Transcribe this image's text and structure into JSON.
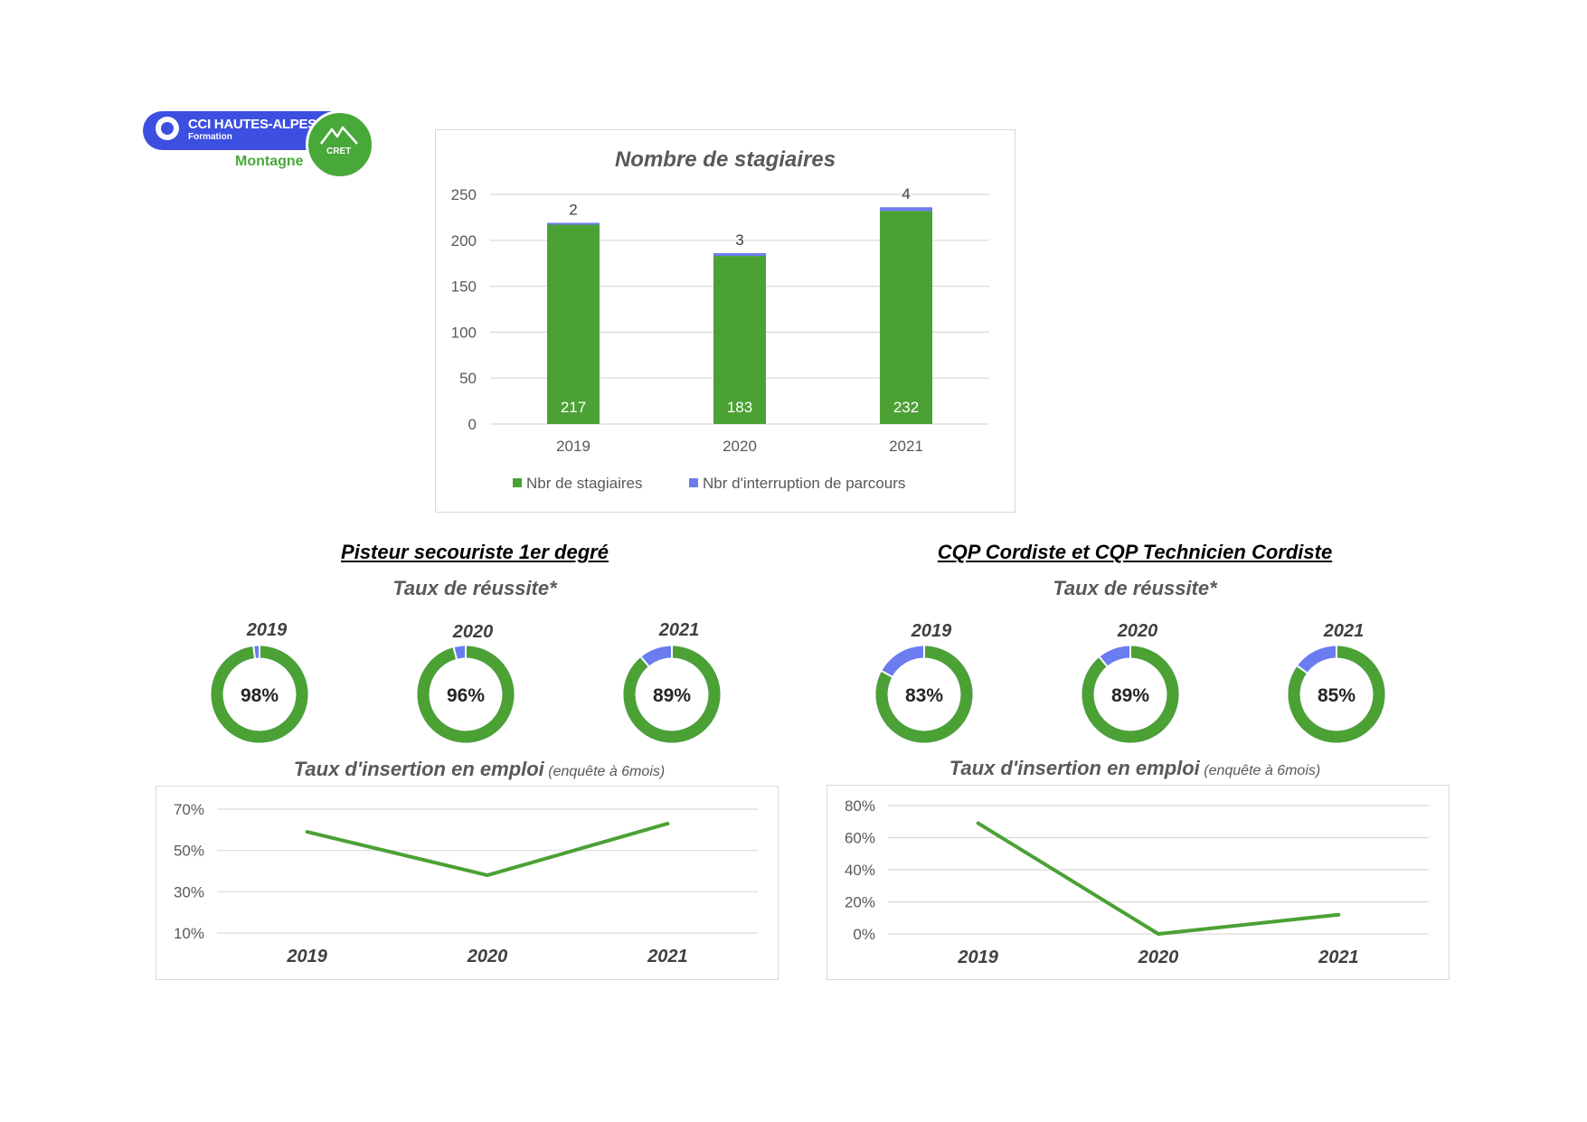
{
  "logo": {
    "line1": "CCI HAUTES-ALPES",
    "line2": "Formation",
    "line3": "Montagne",
    "badge": "CRET"
  },
  "colors": {
    "green": "#4ba134",
    "blue": "#6b7cf0",
    "grid": "#d9d9d9"
  },
  "sections": {
    "left_title": "Pisteur secouriste 1er degré",
    "right_title": "CQP Cordiste et CQP Technicien Cordiste",
    "success_label": "Taux de réussite*",
    "insertion_label": "Taux d'insertion en emploi",
    "insertion_note": "(enquête à 6mois)"
  },
  "chart_data": [
    {
      "id": "stagiaires",
      "type": "bar",
      "stacked": true,
      "title": "Nombre de stagiaires",
      "categories": [
        "2019",
        "2020",
        "2021"
      ],
      "series": [
        {
          "name": "Nbr de stagiaires",
          "values": [
            217,
            183,
            232
          ],
          "color": "#4ba134"
        },
        {
          "name": "Nbr d'interruption de parcours",
          "values": [
            2,
            3,
            4
          ],
          "color": "#6b7cf0"
        }
      ],
      "ylim": [
        0,
        250
      ],
      "yticks": [
        "0",
        "50",
        "100",
        "150",
        "200",
        "250"
      ],
      "legend": "bottom",
      "grid": true
    },
    {
      "id": "pisteur-reussite",
      "type": "pie",
      "donut": true,
      "categories": [
        "2019",
        "2020",
        "2021"
      ],
      "values": [
        98,
        96,
        89
      ],
      "labels": [
        "98%",
        "96%",
        "89%"
      ]
    },
    {
      "id": "cordiste-reussite",
      "type": "pie",
      "donut": true,
      "categories": [
        "2019",
        "2020",
        "2021"
      ],
      "values": [
        83,
        89,
        85
      ],
      "labels": [
        "83%",
        "89%",
        "85%"
      ]
    },
    {
      "id": "pisteur-insertion",
      "type": "line",
      "categories": [
        "2019",
        "2020",
        "2021"
      ],
      "values": [
        59,
        38,
        63
      ],
      "ylim": [
        10,
        70
      ],
      "yticks": [
        "10%",
        "30%",
        "50%",
        "70%"
      ],
      "grid": true
    },
    {
      "id": "cordiste-insertion",
      "type": "line",
      "categories": [
        "2019",
        "2020",
        "2021"
      ],
      "values": [
        69,
        0,
        12
      ],
      "ylim": [
        0,
        80
      ],
      "yticks": [
        "0%",
        "20%",
        "40%",
        "60%",
        "80%"
      ],
      "grid": true
    }
  ]
}
